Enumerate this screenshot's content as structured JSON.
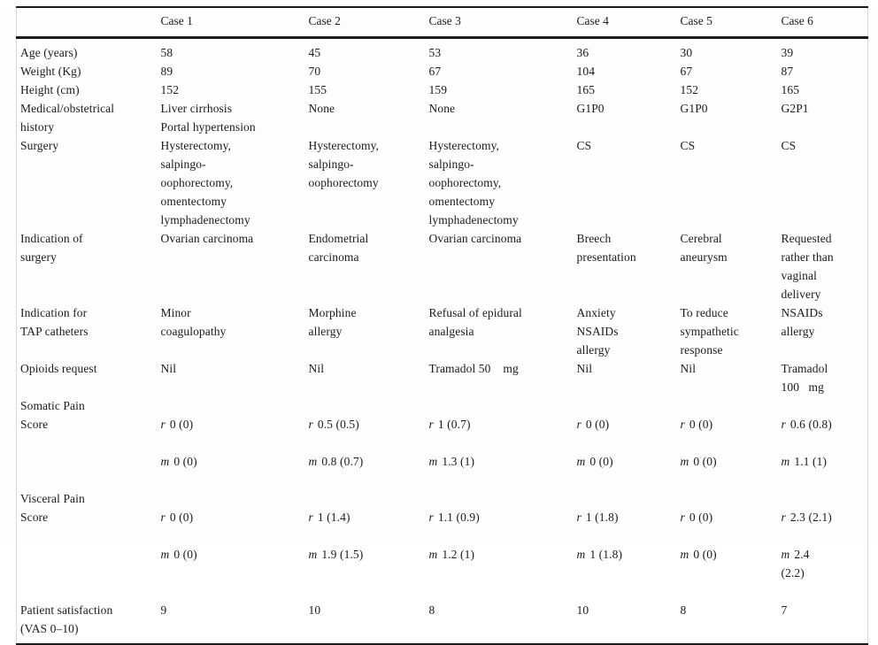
{
  "text_color": "#1b1b1b",
  "rule_color": "#1c1c1c",
  "edge_line_color": "#d9d9d9",
  "pain_labels": {
    "rest": "r",
    "movement": "m"
  },
  "table": {
    "columns": [
      "",
      "Case 1",
      "Case 2",
      "Case 3",
      "Case 4",
      "Case 5",
      "Case 6"
    ],
    "rows": [
      {
        "label": "Age (years)",
        "cells": [
          "58",
          "45",
          "53",
          "36",
          "30",
          "39"
        ]
      },
      {
        "label": "Weight (Kg)",
        "cells": [
          "89",
          "70",
          "67",
          "104",
          "67",
          "87"
        ]
      },
      {
        "label": "Height (cm)",
        "cells": [
          "152",
          "155",
          "159",
          "165",
          "152",
          "165"
        ]
      },
      {
        "label": "Medical/obstetrical\nhistory",
        "cells": [
          "Liver cirrhosis\nPortal hypertension",
          "None",
          "None",
          "G1P0",
          "G1P0",
          "G2P1"
        ]
      },
      {
        "label": "Surgery",
        "cells": [
          "Hysterectomy,\nsalpingo-\noophorectomy,\nomentectomy\nlymphadenectomy",
          "Hysterectomy,\nsalpingo-\noophorectomy",
          "Hysterectomy,\nsalpingo-\noophorectomy,\nomentectomy\nlymphadenectomy",
          "CS",
          "CS",
          "CS"
        ]
      },
      {
        "label": "Indication of\nsurgery",
        "cells": [
          "Ovarian carcinoma",
          "Endometrial\ncarcinoma",
          "Ovarian carcinoma",
          "Breech\npresentation",
          "Cerebral\naneurysm",
          "Requested\nrather than\nvaginal\ndelivery"
        ]
      },
      {
        "label": "Indication for\nTAP catheters",
        "cells": [
          "Minor\ncoagulopathy",
          "Morphine\nallergy",
          "Refusal of epidural\nanalgesia",
          "Anxiety\nNSAIDs\nallergy",
          "To reduce\nsympathetic\nresponse",
          "NSAIDs\nallergy"
        ]
      },
      {
        "label": "Opioids request",
        "cells": [
          "Nil",
          "Nil",
          "Tramadol 50    mg",
          "Nil",
          "Nil",
          "Tramadol\n100   mg"
        ]
      },
      {
        "label": "Somatic Pain\nScore",
        "type": "pain",
        "cells": [
          {
            "r": "0 (0)",
            "m": "0 (0)"
          },
          {
            "r": "0.5 (0.5)",
            "m": "0.8 (0.7)"
          },
          {
            "r": "1 (0.7)",
            "m": "1.3 (1)"
          },
          {
            "r": "0 (0)",
            "m": "0 (0)"
          },
          {
            "r": "0 (0)",
            "m": "0 (0)"
          },
          {
            "r": "0.6 (0.8)",
            "m": "1.1 (1)"
          }
        ]
      },
      {
        "label": "Visceral Pain\nScore",
        "type": "pain",
        "cells": [
          {
            "r": "0 (0)",
            "m": "0 (0)"
          },
          {
            "r": "1 (1.4)",
            "m": "1.9 (1.5)"
          },
          {
            "r": "1.1 (0.9)",
            "m": "1.2 (1)"
          },
          {
            "r": "1 (1.8)",
            "m": "1 (1.8)"
          },
          {
            "r": "0 (0)",
            "m": "0 (0)"
          },
          {
            "r": "2.3 (2.1)",
            "m": "2.4\n(2.2)"
          }
        ]
      },
      {
        "label": "Patient satisfaction\n(VAS 0–10)",
        "cells": [
          "9",
          "10",
          "8",
          "10",
          "8",
          "7"
        ]
      }
    ]
  }
}
